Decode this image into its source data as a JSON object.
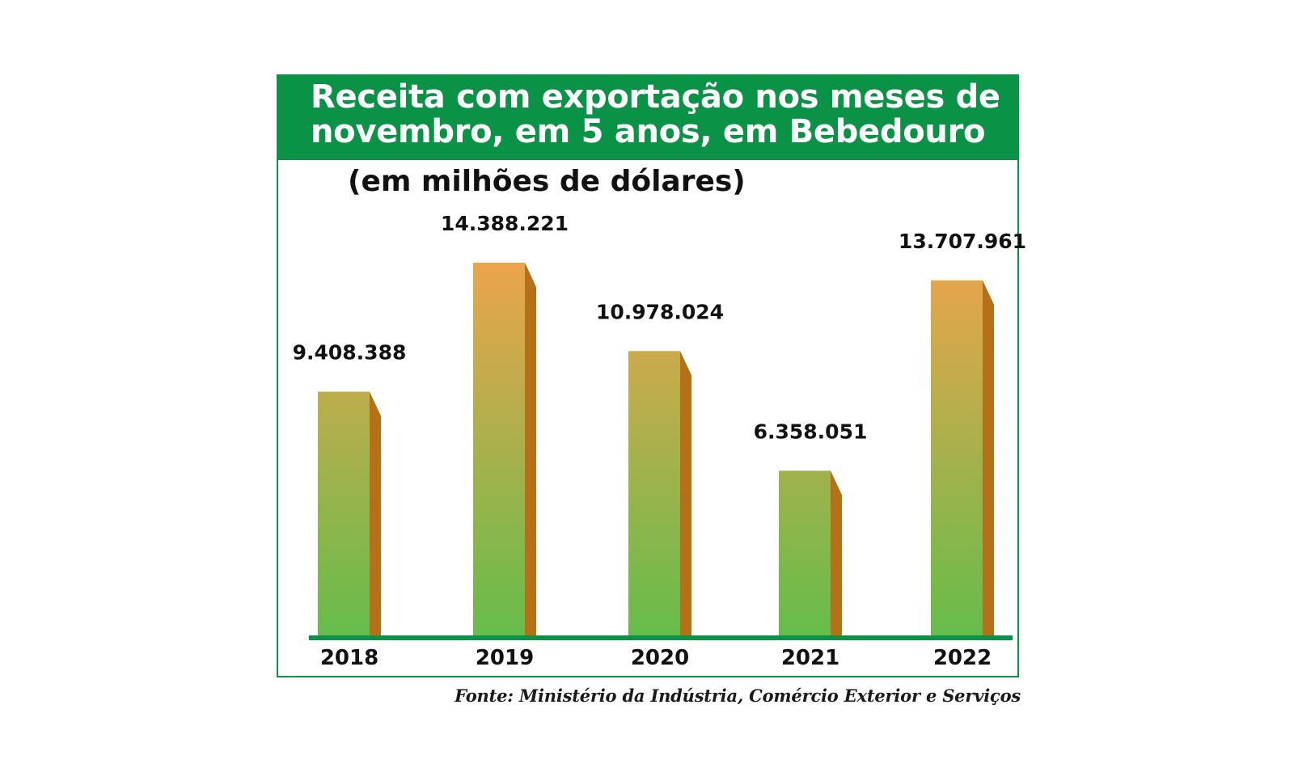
{
  "chart_data": {
    "type": "bar",
    "title": "Receita com exportação nos meses de novembro, em 5 anos, em Bebedouro",
    "subtitle": "(em milhões de dólares)",
    "categories": [
      "2018",
      "2019",
      "2020",
      "2021",
      "2022"
    ],
    "values": [
      9408388,
      14388221,
      10978024,
      6358051,
      13707961
    ],
    "value_labels": [
      "9.408.388",
      "14.388.221",
      "10.978.024",
      "6.358.051",
      "13.707.961"
    ],
    "ylim": [
      0,
      15000000
    ],
    "grid": false,
    "legend": "none",
    "source": "Fonte: Ministério da Indústria, Comércio Exterior e Serviços"
  },
  "colors": {
    "brand_green": "#0a9347",
    "bar_top": "#eda44c",
    "bar_bottom": "#64bd4b",
    "bar_side": "#b57018",
    "baseline": "#0a9347"
  }
}
